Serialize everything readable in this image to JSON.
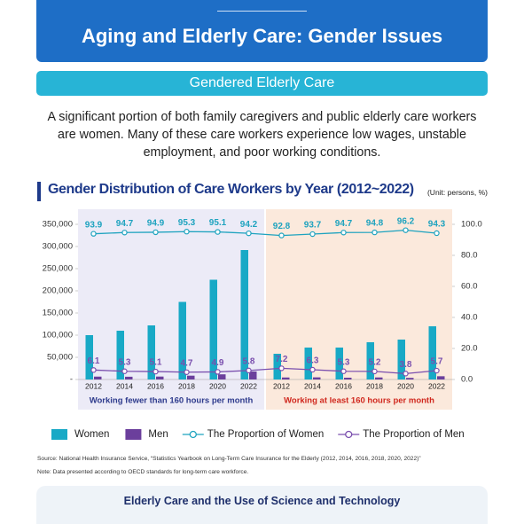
{
  "header": {
    "title": "Aging and Elderly Care: Gender Issues",
    "subtitle": "Gendered Elderly Care",
    "intro": "A significant portion of both family caregivers and public elderly care workers are women. Many of these care workers experience low wages, unstable employment, and poor working conditions."
  },
  "chart_data": {
    "type": "combo",
    "title": "Gender Distribution of Care Workers by Year (2012~2022)",
    "unit": "(Unit: persons, %)",
    "categories": [
      "2012",
      "2014",
      "2016",
      "2018",
      "2020",
      "2022",
      "2012",
      "2014",
      "2016",
      "2018",
      "2020",
      "2022"
    ],
    "panels": [
      {
        "label": "Working fewer than 160 hours per month",
        "color": "#ecebf7",
        "label_color": "#2d3a8c"
      },
      {
        "label": "Working at least 160 hours per month",
        "color": "#fbe9dc",
        "label_color": "#d0271d"
      }
    ],
    "series": [
      {
        "name": "Women",
        "type": "bar",
        "color": "#18a9c6",
        "values": [
          100000,
          110000,
          122000,
          175000,
          225000,
          292000,
          58000,
          72000,
          72000,
          84000,
          90000,
          120000
        ]
      },
      {
        "name": "Men",
        "type": "bar",
        "color": "#6b3f9c",
        "values": [
          6500,
          6200,
          6600,
          8600,
          11600,
          18000,
          4500,
          4800,
          4000,
          4600,
          3600,
          7300
        ]
      },
      {
        "name": "The Proportion of Women",
        "type": "line",
        "axis": "y2",
        "color": "#1ea3bf",
        "values": [
          93.9,
          94.7,
          94.9,
          95.3,
          95.1,
          94.2,
          92.8,
          93.7,
          94.7,
          94.8,
          96.2,
          94.3
        ]
      },
      {
        "name": "The Proportion of Men",
        "type": "line",
        "axis": "y2",
        "color": "#7a4fae",
        "values": [
          6.1,
          5.3,
          5.1,
          4.7,
          4.9,
          5.8,
          7.2,
          6.3,
          5.3,
          5.2,
          3.8,
          5.7
        ]
      }
    ],
    "ylim": [
      0,
      350000
    ],
    "yticks": [
      {
        "value": 0,
        "label": "-"
      },
      {
        "value": 50000,
        "label": "50,000"
      },
      {
        "value": 100000,
        "label": "100,000"
      },
      {
        "value": 150000,
        "label": "150,000"
      },
      {
        "value": 200000,
        "label": "200,000"
      },
      {
        "value": 250000,
        "label": "250,000"
      },
      {
        "value": 300000,
        "label": "300,000"
      },
      {
        "value": 350000,
        "label": "350,000"
      }
    ],
    "y2lim": [
      0,
      100
    ],
    "y2ticks": [
      {
        "value": 0,
        "label": "0.0"
      },
      {
        "value": 20,
        "label": "20.0"
      },
      {
        "value": 40,
        "label": "40.0"
      },
      {
        "value": 60,
        "label": "60.0"
      },
      {
        "value": 80,
        "label": "80.0"
      },
      {
        "value": 100,
        "label": "100.0"
      }
    ],
    "source": "Source: National Health Insurance Service, “Statistics Yearbook on Long-Term Care Insurance for the Elderly (2012, 2014, 2016, 2018, 2020, 2022)”",
    "note": "Note: Data presented according to OECD standards for long-term care workforce."
  },
  "footer": {
    "title": "Elderly Care and the Use of Science and Technology"
  }
}
